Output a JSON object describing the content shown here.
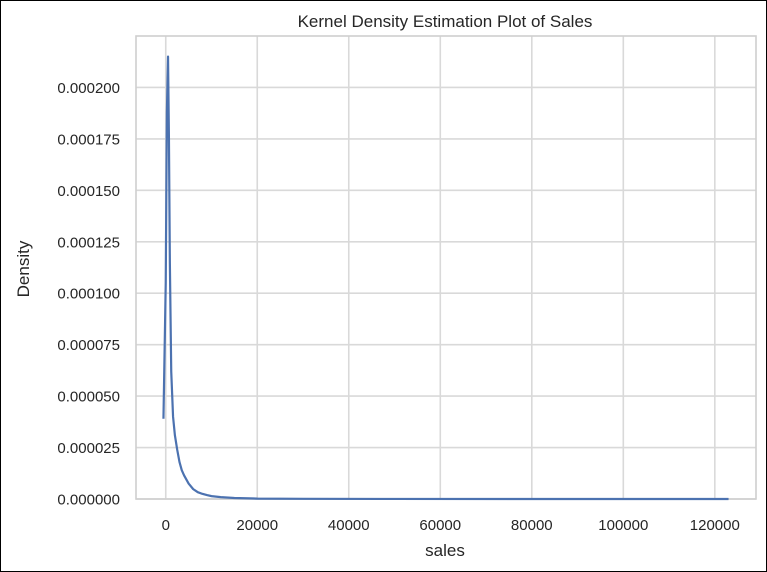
{
  "chart_data": {
    "type": "line",
    "title": "Kernel Density Estimation Plot of Sales",
    "xlabel": "sales",
    "ylabel": "Density",
    "xlim": [
      -6500,
      129000
    ],
    "ylim": [
      0,
      0.000225
    ],
    "xticks": [
      0,
      20000,
      40000,
      60000,
      80000,
      100000,
      120000
    ],
    "xtick_labels": [
      "0",
      "20000",
      "40000",
      "60000",
      "80000",
      "100000",
      "120000"
    ],
    "yticks": [
      0,
      2.5e-05,
      5e-05,
      7.5e-05,
      0.0001,
      0.000125,
      0.00015,
      0.000175,
      0.0002
    ],
    "ytick_labels": [
      "0.000000",
      "0.000025",
      "0.000050",
      "0.000075",
      "0.000100",
      "0.000125",
      "0.000150",
      "0.000175",
      "0.000200"
    ],
    "grid": true,
    "series": [
      {
        "color": "#4c72b0",
        "x": [
          -500,
          0,
          250,
          500,
          700,
          900,
          1200,
          1600,
          2000,
          2500,
          3000,
          3500,
          4000,
          5000,
          6000,
          7000,
          8000,
          9000,
          10000,
          12000,
          15000,
          20000,
          30000,
          50000,
          80000,
          100000,
          123000
        ],
        "y": [
          3.9e-05,
          0.000105,
          0.000188,
          0.000215,
          0.000175,
          0.000115,
          6.2e-05,
          4e-05,
          3.1e-05,
          2.4e-05,
          1.8e-05,
          1.4e-05,
          1.15e-05,
          7.5e-06,
          4.8e-06,
          3.3e-06,
          2.5e-06,
          1.9e-06,
          1.4e-06,
          9e-07,
          5e-07,
          2e-07,
          1e-07,
          3e-08,
          1e-08,
          5e-09,
          5e-10
        ]
      }
    ]
  }
}
